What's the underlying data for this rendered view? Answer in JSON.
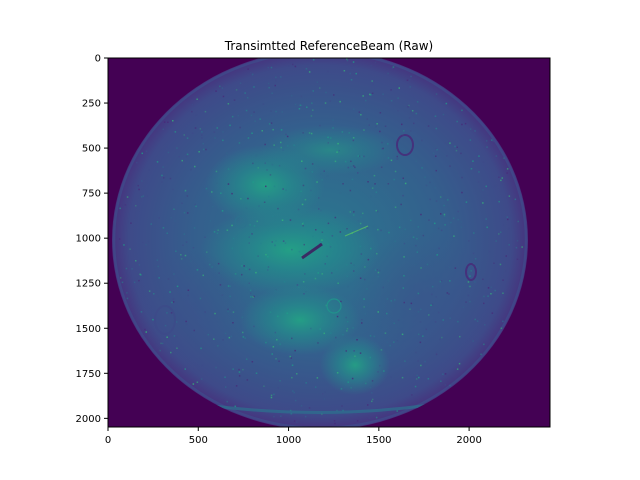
{
  "chart_data": {
    "type": "heatmap",
    "title": "Transimtted ReferenceBeam (Raw)",
    "xlabel": "",
    "ylabel": "",
    "xlim": [
      0,
      2448
    ],
    "ylim": [
      2048,
      0
    ],
    "x_ticks": [
      0,
      500,
      1000,
      1500,
      2000
    ],
    "y_ticks": [
      0,
      250,
      500,
      750,
      1000,
      1250,
      1500,
      1750,
      2000
    ],
    "x_tick_labels": [
      "0",
      "500",
      "1000",
      "1500",
      "2000"
    ],
    "y_tick_labels": [
      "0",
      "250",
      "500",
      "750",
      "1000",
      "1250",
      "1500",
      "1750",
      "2000"
    ],
    "colormap": "viridis",
    "grid": false,
    "colors": {
      "background": "#440154",
      "mid": "#3b528b",
      "bright": "#21918c",
      "highlight": "#5ec962"
    }
  }
}
